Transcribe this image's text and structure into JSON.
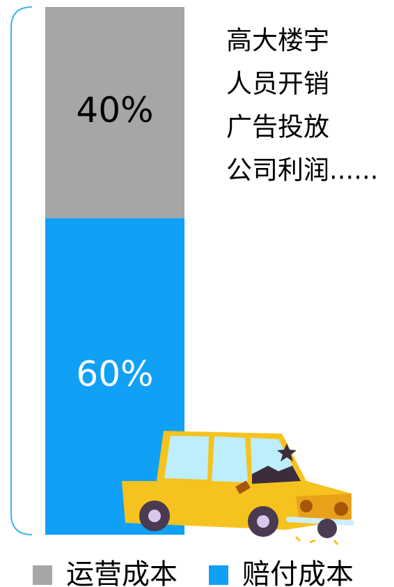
{
  "chart_data": {
    "type": "bar",
    "stacked": true,
    "categories": [
      null
    ],
    "series": [
      {
        "name": "运营成本",
        "color": "#a6a6a6",
        "values": [
          40
        ],
        "value_labels": [
          "40%"
        ],
        "label_color": "#000000"
      },
      {
        "name": "赔付成本",
        "color": "#10a0f5",
        "values": [
          60
        ],
        "value_labels": [
          "60%"
        ],
        "label_color": "#ffffff"
      }
    ],
    "ylim": [
      0,
      100
    ],
    "annotation": [
      "高大楼宇",
      "人员开销",
      "广告投放",
      "公司利润......"
    ],
    "legend": "bottom"
  }
}
